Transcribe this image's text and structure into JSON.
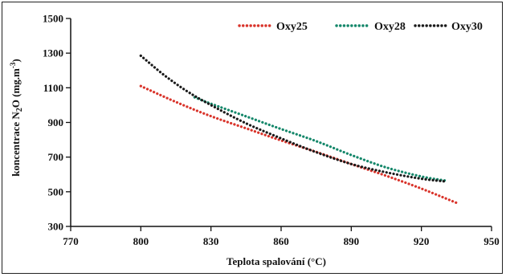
{
  "chart_data": {
    "type": "line",
    "title": "",
    "xlabel": "Teplota spalování (°C)",
    "ylabel_parts": {
      "a": "koncentrace N",
      "sub": "2",
      "b": "O (mg.m",
      "sup": "-3",
      "c": ")"
    },
    "xlim": [
      770,
      950
    ],
    "ylim": [
      300,
      1500
    ],
    "xticks": [
      "770",
      "800",
      "830",
      "860",
      "890",
      "920",
      "950"
    ],
    "yticks": [
      "300",
      "500",
      "700",
      "900",
      "1100",
      "1300",
      "1500"
    ],
    "grid": false,
    "legend_position": "top-right",
    "series": [
      {
        "name": "Oxy25",
        "color": "#d9342b",
        "x": [
          800,
          815,
          830,
          845,
          860,
          875,
          890,
          905,
          920,
          935
        ],
        "y": [
          1110,
          1018,
          936,
          866,
          796,
          730,
          660,
          592,
          518,
          436
        ]
      },
      {
        "name": "Oxy28",
        "color": "#14876a",
        "x": [
          823,
          830,
          845,
          860,
          875,
          890,
          905,
          920,
          930
        ],
        "y": [
          1045,
          1008,
          935,
          862,
          792,
          712,
          640,
          588,
          565
        ]
      },
      {
        "name": "Oxy30",
        "color": "#1a1a1a",
        "x": [
          800,
          810,
          820,
          830,
          845,
          860,
          875,
          890,
          905,
          920,
          930
        ],
        "y": [
          1285,
          1173,
          1078,
          1000,
          895,
          808,
          728,
          660,
          612,
          575,
          560
        ]
      }
    ]
  }
}
